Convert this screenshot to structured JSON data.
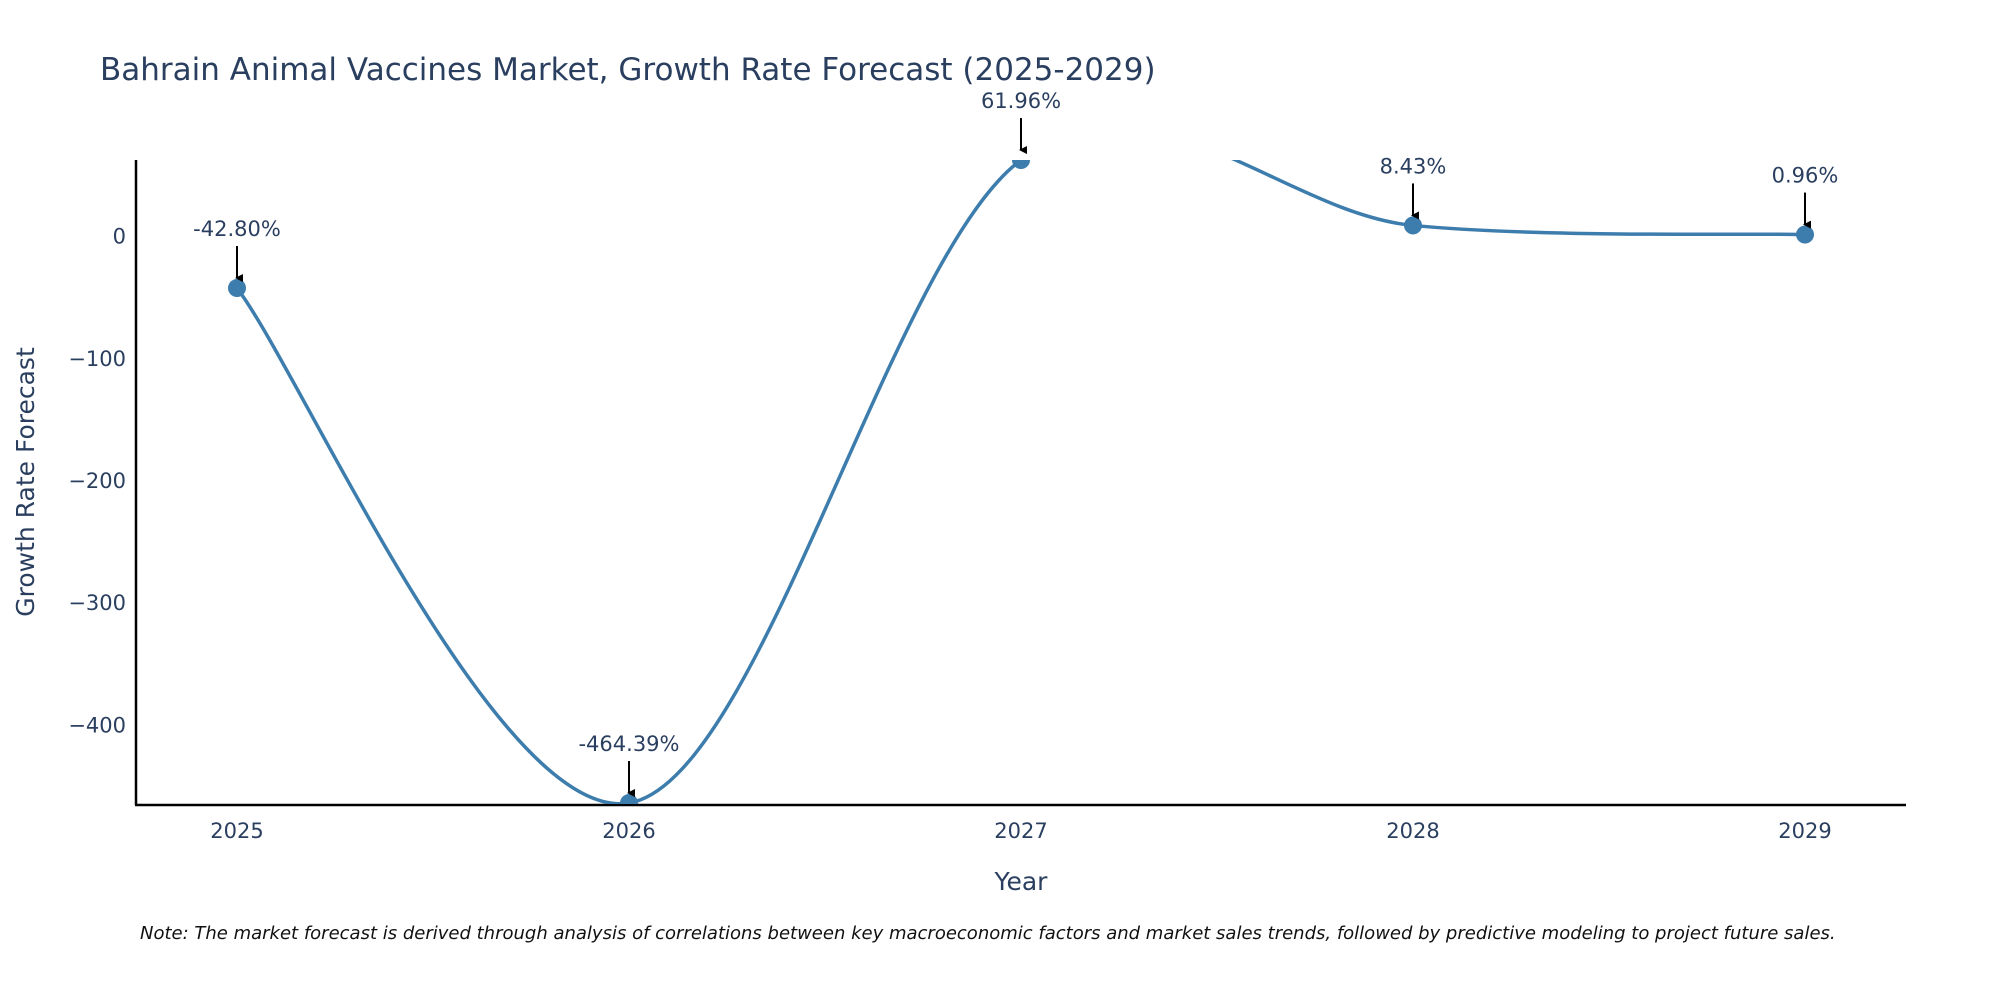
{
  "chart_data": {
    "type": "line",
    "title": "Bahrain Animal Vaccines Market, Growth Rate Forecast (2025-2029)",
    "xlabel": "Year",
    "ylabel": "Growth Rate Forecast",
    "x": [
      "2025",
      "2026",
      "2027",
      "2028",
      "2029"
    ],
    "series": [
      {
        "name": "Growth Rate Forecast",
        "values": [
          -42.8,
          -464.39,
          61.96,
          8.43,
          0.96
        ],
        "color": "#3d7dad"
      }
    ],
    "annotations": [
      "-42.80%",
      "-464.39%",
      "61.96%",
      "8.43%",
      "0.96%"
    ],
    "ylim": [
      -466,
      62
    ],
    "yticks": [
      0,
      -100,
      -200,
      -300,
      -400
    ],
    "ytick_labels": [
      "0",
      "−100",
      "−200",
      "−300",
      "−400"
    ],
    "grid": false,
    "line_shape": "spline",
    "note": "Note: The market forecast is derived through analysis of correlations between key macroeconomic factors and market sales trends, followed by predictive modeling to project future sales."
  }
}
